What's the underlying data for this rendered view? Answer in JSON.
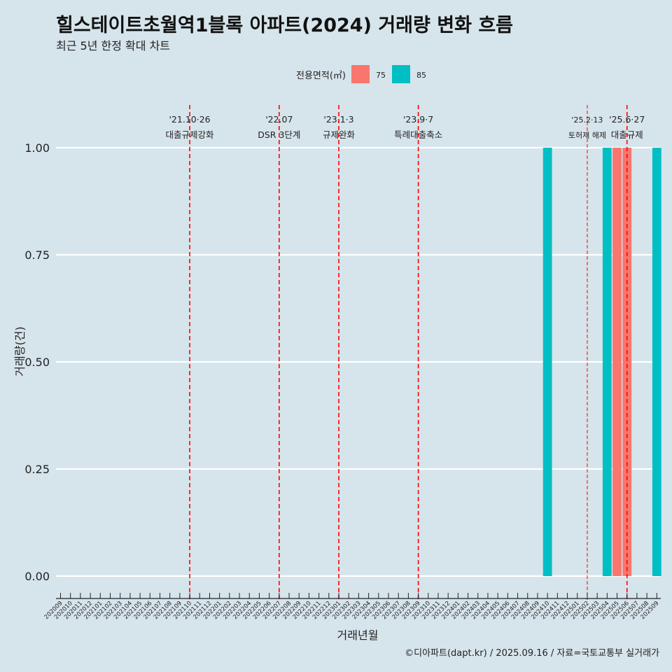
{
  "header": {
    "title": "힐스테이트초월역1블록 아파트(2024) 거래량 변화 흐름",
    "subtitle": "최근 5년 한정 확대 차트"
  },
  "footer": {
    "caption": "©디아파트(dapt.kr) / 2025.09.16 / 자료=국토교통부 실거래가"
  },
  "colors": {
    "background": "#d6e4eb",
    "series_75": "#f8766d",
    "series_85": "#00bfc4",
    "event_line": "#ff0000",
    "grid": "#ffffff"
  },
  "chart_data": {
    "type": "bar",
    "stacked": true,
    "title": "힐스테이트초월역1블록 아파트(2024) 거래량 변화 흐름",
    "subtitle": "최근 5년 한정 확대 차트",
    "xlabel": "거래년월",
    "ylabel": "거래량(건)",
    "ylim": [
      -0.04,
      1.1
    ],
    "yticks": [
      "0.00",
      "0.25",
      "0.50",
      "0.75",
      "1.00"
    ],
    "grid": true,
    "legend": {
      "title": "전용면적(㎡)",
      "position": "top",
      "entries": [
        "75",
        "85"
      ]
    },
    "categories": [
      "202009",
      "202010",
      "202011",
      "202012",
      "202101",
      "202102",
      "202103",
      "202104",
      "202105",
      "202106",
      "202107",
      "202108",
      "202109",
      "202110",
      "202111",
      "202112",
      "202201",
      "202202",
      "202203",
      "202204",
      "202205",
      "202206",
      "202207",
      "202208",
      "202209",
      "202210",
      "202211",
      "202212",
      "202301",
      "202302",
      "202303",
      "202304",
      "202305",
      "202306",
      "202307",
      "202308",
      "202309",
      "202310",
      "202311",
      "202312",
      "202401",
      "202402",
      "202403",
      "202404",
      "202405",
      "202406",
      "202407",
      "202408",
      "202409",
      "202410",
      "202411",
      "202412",
      "202501",
      "202502",
      "202503",
      "202504",
      "202505",
      "202506",
      "202507",
      "202508",
      "202509"
    ],
    "series": [
      {
        "name": "75",
        "points": [
          {
            "x": "202505",
            "y": 1
          },
          {
            "x": "202506",
            "y": 1
          }
        ]
      },
      {
        "name": "85",
        "points": [
          {
            "x": "202410",
            "y": 1
          },
          {
            "x": "202504",
            "y": 1
          },
          {
            "x": "202509",
            "y": 1
          }
        ]
      }
    ],
    "events": [
      {
        "x": "202110",
        "date": "'21.10·26",
        "label": "대출규제강화",
        "style": "dashed"
      },
      {
        "x": "202207",
        "date": "'22.07",
        "label": "DSR 3단계",
        "style": "dashed"
      },
      {
        "x": "202301",
        "date": "'23.1·3",
        "label": "규제완화",
        "style": "dashed"
      },
      {
        "x": "202309",
        "date": "'23.9·7",
        "label": "특례대출축소",
        "style": "dashed"
      },
      {
        "x": "202502",
        "date": "'25.2·13",
        "label": "토허제 해제",
        "style": "dashed-thin"
      },
      {
        "x": "202506",
        "date": "'25.6·27",
        "label": "대출규제",
        "style": "dashed"
      }
    ]
  }
}
